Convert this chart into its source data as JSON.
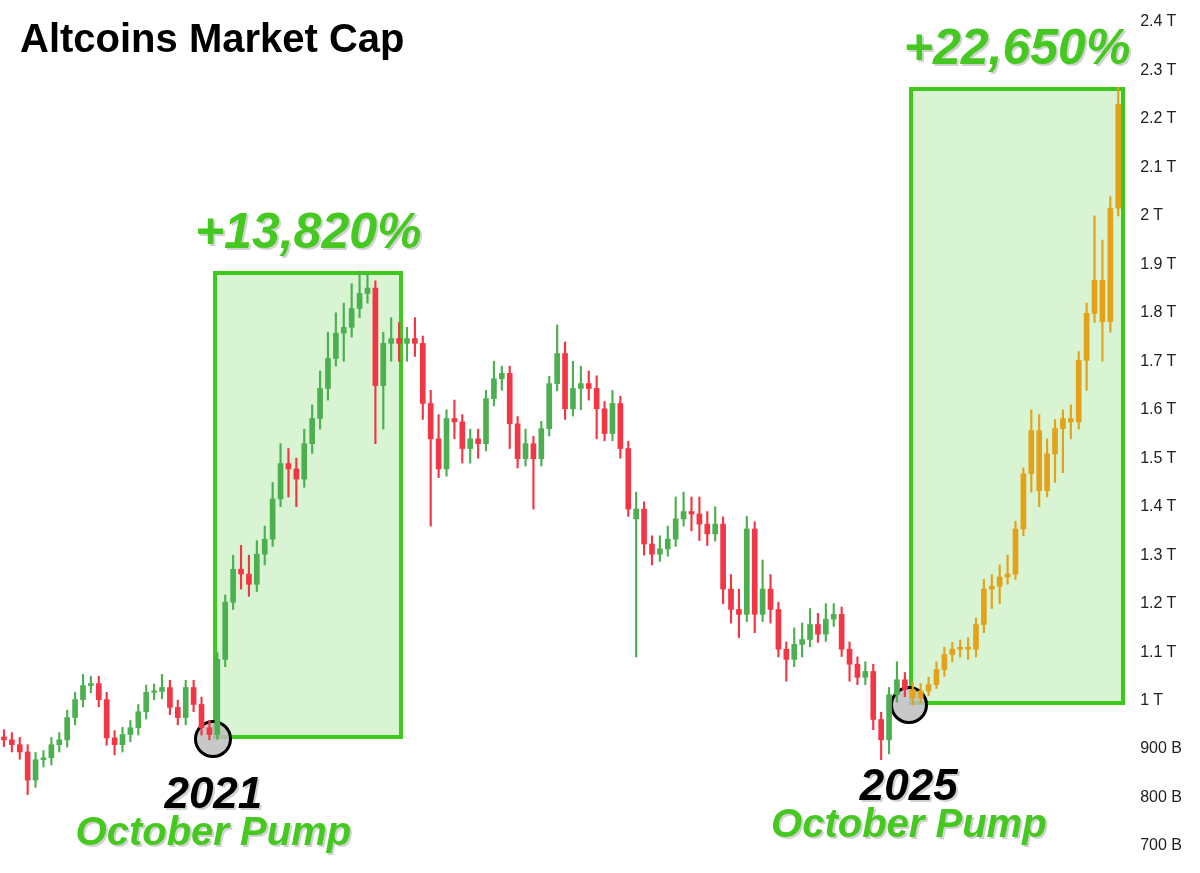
{
  "chart_data": {
    "type": "candlestick",
    "title": "Altcoins Market Cap",
    "categories": [
      null,
      null,
      null,
      null,
      null,
      null,
      null,
      null,
      null,
      null,
      null,
      null,
      null,
      null,
      null,
      null,
      null,
      null,
      null,
      null,
      null,
      null,
      null,
      null,
      null,
      null,
      null,
      null,
      null,
      null,
      null,
      null,
      null,
      null,
      null,
      null,
      null,
      null,
      null,
      null,
      null,
      null,
      null,
      null,
      null,
      null,
      null,
      null,
      null,
      null,
      null,
      null,
      null,
      null,
      null,
      null,
      null,
      null,
      null,
      null,
      null,
      null,
      null,
      null,
      null,
      null,
      null,
      null,
      null,
      null,
      null,
      null,
      null,
      null,
      null,
      null,
      null,
      null,
      null,
      null,
      null,
      null,
      null,
      null,
      null,
      null,
      null,
      null,
      null,
      null,
      null,
      null,
      null,
      null,
      null,
      null,
      null,
      null,
      null,
      null,
      null,
      null,
      null,
      null,
      null,
      null,
      null,
      null,
      null,
      null,
      null,
      null,
      null,
      null,
      null,
      null,
      null,
      null,
      null,
      null,
      null,
      null,
      null,
      null,
      null,
      null,
      null,
      null,
      null,
      null,
      null,
      null,
      null,
      null,
      null,
      null,
      null,
      null,
      null,
      null,
      null,
      null
    ],
    "yticks": [
      {
        "value": 700000000000.0,
        "label": "700 B"
      },
      {
        "value": 800000000000.0,
        "label": "800 B"
      },
      {
        "value": 900000000000.0,
        "label": "900 B"
      },
      {
        "value": 1000000000000.0,
        "label": "1 T"
      },
      {
        "value": 1100000000000.0,
        "label": "1.1 T"
      },
      {
        "value": 1200000000000.0,
        "label": "1.2 T"
      },
      {
        "value": 1300000000000.0,
        "label": "1.3 T"
      },
      {
        "value": 1400000000000.0,
        "label": "1.4 T"
      },
      {
        "value": 1500000000000.0,
        "label": "1.5 T"
      },
      {
        "value": 1600000000000.0,
        "label": "1.6 T"
      },
      {
        "value": 1700000000000.0,
        "label": "1.7 T"
      },
      {
        "value": 1800000000000.0,
        "label": "1.8 T"
      },
      {
        "value": 1900000000000.0,
        "label": "1.9 T"
      },
      {
        "value": 2000000000000.0,
        "label": "2 T"
      },
      {
        "value": 2100000000000.0,
        "label": "2.1 T"
      },
      {
        "value": 2200000000000.0,
        "label": "2.2 T"
      },
      {
        "value": 2300000000000.0,
        "label": "2.3 T"
      },
      {
        "value": 2400000000000.0,
        "label": "2.4 T"
      }
    ],
    "ylim": [
      700000000000.0,
      2400000000000.0
    ],
    "tick_labels": "y",
    "grid": false,
    "legend": false,
    "ohlc": [
      [
        925000000000.0,
        940000000000.0,
        905000000000.0,
        919000000000.0
      ],
      [
        919000000000.0,
        934000000000.0,
        894000000000.0,
        909000000000.0
      ],
      [
        909000000000.0,
        924000000000.0,
        879000000000.0,
        894000000000.0
      ],
      [
        894000000000.0,
        909000000000.0,
        806000000000.0,
        836000000000.0
      ],
      [
        836000000000.0,
        893000000000.0,
        821000000000.0,
        878000000000.0
      ],
      [
        878000000000.0,
        897000000000.0,
        863000000000.0,
        882000000000.0
      ],
      [
        882000000000.0,
        924000000000.0,
        867000000000.0,
        909000000000.0
      ],
      [
        909000000000.0,
        934000000000.0,
        894000000000.0,
        919000000000.0
      ],
      [
        919000000000.0,
        980000000000.0,
        904000000000.0,
        965000000000.0
      ],
      [
        965000000000.0,
        1017000000000.0,
        950000000000.0,
        1002000000000.0
      ],
      [
        1002000000000.0,
        1054000000000.0,
        987000000000.0,
        1031000000000.0
      ],
      [
        1031000000000.0,
        1050000000000.0,
        1016000000000.0,
        1035000000000.0
      ],
      [
        1035000000000.0,
        1050000000000.0,
        987000000000.0,
        1002000000000.0
      ],
      [
        1002000000000.0,
        1017000000000.0,
        908000000000.0,
        923000000000.0
      ],
      [
        923000000000.0,
        938000000000.0,
        888000000000.0,
        909000000000.0
      ],
      [
        909000000000.0,
        945000000000.0,
        894000000000.0,
        930000000000.0
      ],
      [
        930000000000.0,
        959000000000.0,
        915000000000.0,
        944000000000.0
      ],
      [
        944000000000.0,
        992000000000.0,
        929000000000.0,
        977000000000.0
      ],
      [
        977000000000.0,
        1032000000000.0,
        962000000000.0,
        1017000000000.0
      ],
      [
        1017000000000.0,
        1034000000000.0,
        1002000000000.0,
        1019000000000.0
      ],
      [
        1019000000000.0,
        1054000000000.0,
        1004000000000.0,
        1027000000000.0
      ],
      [
        1027000000000.0,
        1042000000000.0,
        971000000000.0,
        986000000000.0
      ],
      [
        986000000000.0,
        1001000000000.0,
        950000000000.0,
        965000000000.0
      ],
      [
        965000000000.0,
        1042000000000.0,
        950000000000.0,
        1027000000000.0
      ],
      [
        1027000000000.0,
        1042000000000.0,
        977000000000.0,
        992000000000.0
      ],
      [
        992000000000.0,
        1007000000000.0,
        929000000000.0,
        944000000000.0
      ],
      [
        944000000000.0,
        959000000000.0,
        919000000000.0,
        930000000000.0
      ],
      [
        930000000000.0,
        1100000000000.0,
        920000000000.0,
        1085000000000.0
      ],
      [
        1085000000000.0,
        1218000000000.0,
        1070000000000.0,
        1203000000000.0
      ],
      [
        1203000000000.0,
        1300000000000.0,
        1188000000000.0,
        1271000000000.0
      ],
      [
        1271000000000.0,
        1320000000000.0,
        1230000000000.0,
        1261000000000.0
      ],
      [
        1261000000000.0,
        1300000000000.0,
        1215000000000.0,
        1240000000000.0
      ],
      [
        1240000000000.0,
        1330000000000.0,
        1225000000000.0,
        1302000000000.0
      ],
      [
        1302000000000.0,
        1360000000000.0,
        1280000000000.0,
        1333000000000.0
      ],
      [
        1333000000000.0,
        1450000000000.0,
        1318000000000.0,
        1416000000000.0
      ],
      [
        1416000000000.0,
        1530000000000.0,
        1400000000000.0,
        1489000000000.0
      ],
      [
        1489000000000.0,
        1520000000000.0,
        1420000000000.0,
        1478000000000.0
      ],
      [
        1478000000000.0,
        1500000000000.0,
        1400000000000.0,
        1457000000000.0
      ],
      [
        1457000000000.0,
        1560000000000.0,
        1440000000000.0,
        1530000000000.0
      ],
      [
        1530000000000.0,
        1610000000000.0,
        1510000000000.0,
        1582000000000.0
      ],
      [
        1582000000000.0,
        1680000000000.0,
        1560000000000.0,
        1644000000000.0
      ],
      [
        1644000000000.0,
        1760000000000.0,
        1620000000000.0,
        1706000000000.0
      ],
      [
        1706000000000.0,
        1800000000000.0,
        1690000000000.0,
        1758000000000.0
      ],
      [
        1758000000000.0,
        1820000000000.0,
        1700000000000.0,
        1770000000000.0
      ],
      [
        1770000000000.0,
        1860000000000.0,
        1750000000000.0,
        1809000000000.0
      ],
      [
        1809000000000.0,
        1886000000000.0,
        1790000000000.0,
        1840000000000.0
      ],
      [
        1840000000000.0,
        1880000000000.0,
        1820000000000.0,
        1851000000000.0
      ],
      [
        1851000000000.0,
        1866000000000.0,
        1530000000000.0,
        1650000000000.0
      ],
      [
        1650000000000.0,
        1760000000000.0,
        1560000000000.0,
        1737000000000.0
      ],
      [
        1737000000000.0,
        1790000000000.0,
        1700000000000.0,
        1747000000000.0
      ],
      [
        1747000000000.0,
        1780000000000.0,
        1700000000000.0,
        1737000000000.0
      ],
      [
        1737000000000.0,
        1770000000000.0,
        1700000000000.0,
        1747000000000.0
      ],
      [
        1747000000000.0,
        1790000000000.0,
        1710000000000.0,
        1737000000000.0
      ],
      [
        1737000000000.0,
        1752000000000.0,
        1580000000000.0,
        1613000000000.0
      ],
      [
        1613000000000.0,
        1640000000000.0,
        1360000000000.0,
        1540000000000.0
      ],
      [
        1540000000000.0,
        1590000000000.0,
        1460000000000.0,
        1478000000000.0
      ],
      [
        1478000000000.0,
        1600000000000.0,
        1463000000000.0,
        1582000000000.0
      ],
      [
        1582000000000.0,
        1620000000000.0,
        1540000000000.0,
        1575000000000.0
      ],
      [
        1575000000000.0,
        1590000000000.0,
        1490000000000.0,
        1520000000000.0
      ],
      [
        1520000000000.0,
        1560000000000.0,
        1490000000000.0,
        1540000000000.0
      ],
      [
        1540000000000.0,
        1560000000000.0,
        1500000000000.0,
        1530000000000.0
      ],
      [
        1530000000000.0,
        1640000000000.0,
        1515000000000.0,
        1623000000000.0
      ],
      [
        1623000000000.0,
        1700000000000.0,
        1608000000000.0,
        1664000000000.0
      ],
      [
        1664000000000.0,
        1690000000000.0,
        1640000000000.0,
        1675000000000.0
      ],
      [
        1675000000000.0,
        1690000000000.0,
        1520000000000.0,
        1571000000000.0
      ],
      [
        1571000000000.0,
        1586000000000.0,
        1480000000000.0,
        1499000000000.0
      ],
      [
        1499000000000.0,
        1560000000000.0,
        1484000000000.0,
        1530000000000.0
      ],
      [
        1530000000000.0,
        1545000000000.0,
        1395000000000.0,
        1499000000000.0
      ],
      [
        1499000000000.0,
        1576000000000.0,
        1484000000000.0,
        1561000000000.0
      ],
      [
        1561000000000.0,
        1669000000000.0,
        1546000000000.0,
        1654000000000.0
      ],
      [
        1654000000000.0,
        1775000000000.0,
        1639000000000.0,
        1716000000000.0
      ],
      [
        1716000000000.0,
        1740000000000.0,
        1580000000000.0,
        1602000000000.0
      ],
      [
        1602000000000.0,
        1700000000000.0,
        1587000000000.0,
        1644000000000.0
      ],
      [
        1644000000000.0,
        1690000000000.0,
        1600000000000.0,
        1654000000000.0
      ],
      [
        1654000000000.0,
        1680000000000.0,
        1620000000000.0,
        1644000000000.0
      ],
      [
        1644000000000.0,
        1670000000000.0,
        1540000000000.0,
        1602000000000.0
      ],
      [
        1602000000000.0,
        1617000000000.0,
        1536000000000.0,
        1551000000000.0
      ],
      [
        1551000000000.0,
        1640000000000.0,
        1536000000000.0,
        1613000000000.0
      ],
      [
        1613000000000.0,
        1628000000000.0,
        1500000000000.0,
        1520000000000.0
      ],
      [
        1520000000000.0,
        1535000000000.0,
        1380000000000.0,
        1395000000000.0
      ],
      [
        1375000000000.0,
        1430000000000.0,
        1090000000000.0,
        1395000000000.0
      ],
      [
        1395000000000.0,
        1410000000000.0,
        1300000000000.0,
        1323000000000.0
      ],
      [
        1323000000000.0,
        1340000000000.0,
        1280000000000.0,
        1302000000000.0
      ],
      [
        1302000000000.0,
        1340000000000.0,
        1287000000000.0,
        1313000000000.0
      ],
      [
        1313000000000.0,
        1360000000000.0,
        1298000000000.0,
        1333000000000.0
      ],
      [
        1333000000000.0,
        1420000000000.0,
        1318000000000.0,
        1375000000000.0
      ],
      [
        1375000000000.0,
        1430000000000.0,
        1360000000000.0,
        1390000000000.0
      ],
      [
        1390000000000.0,
        1420000000000.0,
        1350000000000.0,
        1385000000000.0
      ],
      [
        1385000000000.0,
        1420000000000.0,
        1330000000000.0,
        1364000000000.0
      ],
      [
        1364000000000.0,
        1390000000000.0,
        1320000000000.0,
        1344000000000.0
      ],
      [
        1344000000000.0,
        1400000000000.0,
        1329000000000.0,
        1364000000000.0
      ],
      [
        1364000000000.0,
        1379000000000.0,
        1200000000000.0,
        1230000000000.0
      ],
      [
        1230000000000.0,
        1260000000000.0,
        1160000000000.0,
        1188000000000.0
      ],
      [
        1188000000000.0,
        1230000000000.0,
        1130000000000.0,
        1178000000000.0
      ],
      [
        1178000000000.0,
        1380000000000.0,
        1163000000000.0,
        1354000000000.0
      ],
      [
        1354000000000.0,
        1369000000000.0,
        1140000000000.0,
        1178000000000.0
      ],
      [
        1178000000000.0,
        1290000000000.0,
        1163000000000.0,
        1230000000000.0
      ],
      [
        1230000000000.0,
        1260000000000.0,
        1160000000000.0,
        1188000000000.0
      ],
      [
        1188000000000.0,
        1203000000000.0,
        1090000000000.0,
        1106000000000.0
      ],
      [
        1106000000000.0,
        1121000000000.0,
        1040000000000.0,
        1085000000000.0
      ],
      [
        1085000000000.0,
        1150000000000.0,
        1070000000000.0,
        1116000000000.0
      ],
      [
        1116000000000.0,
        1160000000000.0,
        1090000000000.0,
        1126000000000.0
      ],
      [
        1126000000000.0,
        1190000000000.0,
        1111000000000.0,
        1157000000000.0
      ],
      [
        1157000000000.0,
        1180000000000.0,
        1120000000000.0,
        1137000000000.0
      ],
      [
        1137000000000.0,
        1200000000000.0,
        1122000000000.0,
        1168000000000.0
      ],
      [
        1168000000000.0,
        1200000000000.0,
        1153000000000.0,
        1178000000000.0
      ],
      [
        1178000000000.0,
        1193000000000.0,
        1091000000000.0,
        1106000000000.0
      ],
      [
        1106000000000.0,
        1121000000000.0,
        1040000000000.0,
        1075000000000.0
      ],
      [
        1075000000000.0,
        1090000000000.0,
        1033000000000.0,
        1048000000000.0
      ],
      [
        1048000000000.0,
        1080000000000.0,
        1033000000000.0,
        1060000000000.0
      ],
      [
        1060000000000.0,
        1075000000000.0,
        940000000000.0,
        961000000000.0
      ],
      [
        961000000000.0,
        976000000000.0,
        878000000000.0,
        919000000000.0
      ],
      [
        919000000000.0,
        1027000000000.0,
        890000000000.0,
        1012000000000.0
      ],
      [
        1012000000000.0,
        1080000000000.0,
        997000000000.0,
        1043000000000.0
      ],
      [
        1043000000000.0,
        1058000000000.0,
        1008000000000.0,
        1023000000000.0
      ],
      [
        1023000000000.0,
        1038000000000.0,
        991000000000.0,
        1006000000000.0
      ],
      [
        1006000000000.0,
        1035000000000.0,
        995000000000.0,
        1020000000000.0
      ],
      [
        1020000000000.0,
        1048000000000.0,
        1010000000000.0,
        1033000000000.0
      ],
      [
        1033000000000.0,
        1080000000000.0,
        1025000000000.0,
        1064000000000.0
      ],
      [
        1064000000000.0,
        1110000000000.0,
        1050000000000.0,
        1095000000000.0
      ],
      [
        1095000000000.0,
        1120000000000.0,
        1080000000000.0,
        1106000000000.0
      ],
      [
        1106000000000.0,
        1125000000000.0,
        1090000000000.0,
        1110000000000.0
      ],
      [
        1110000000000.0,
        1130000000000.0,
        1085000000000.0,
        1106000000000.0
      ],
      [
        1106000000000.0,
        1170000000000.0,
        1090000000000.0,
        1157000000000.0
      ],
      [
        1157000000000.0,
        1250000000000.0,
        1140000000000.0,
        1230000000000.0
      ],
      [
        1230000000000.0,
        1260000000000.0,
        1190000000000.0,
        1236000000000.0
      ],
      [
        1236000000000.0,
        1280000000000.0,
        1200000000000.0,
        1255000000000.0
      ],
      [
        1255000000000.0,
        1300000000000.0,
        1240000000000.0,
        1261000000000.0
      ],
      [
        1261000000000.0,
        1370000000000.0,
        1250000000000.0,
        1354000000000.0
      ],
      [
        1354000000000.0,
        1480000000000.0,
        1340000000000.0,
        1468000000000.0
      ],
      [
        1468000000000.0,
        1600000000000.0,
        1430000000000.0,
        1557000000000.0
      ],
      [
        1557000000000.0,
        1590000000000.0,
        1400000000000.0,
        1433000000000.0
      ],
      [
        1433000000000.0,
        1540000000000.0,
        1420000000000.0,
        1509000000000.0
      ],
      [
        1509000000000.0,
        1580000000000.0,
        1450000000000.0,
        1561000000000.0
      ],
      [
        1561000000000.0,
        1600000000000.0,
        1470000000000.0,
        1582000000000.0
      ],
      [
        1582000000000.0,
        1610000000000.0,
        1540000000000.0,
        1575000000000.0
      ],
      [
        1575000000000.0,
        1720000000000.0,
        1560000000000.0,
        1702000000000.0
      ],
      [
        1702000000000.0,
        1820000000000.0,
        1640000000000.0,
        1799000000000.0
      ],
      [
        1799000000000.0,
        2000000000000.0,
        1780000000000.0,
        1867000000000.0
      ],
      [
        1867000000000.0,
        1950000000000.0,
        1700000000000.0,
        1782000000000.0
      ],
      [
        1782000000000.0,
        2040000000000.0,
        1760000000000.0,
        2016000000000.0
      ],
      [
        2016000000000.0,
        2265000000000.0,
        2000000000000.0,
        2230000000000.0
      ]
    ],
    "colors": [
      "#f23645",
      "#f23645",
      "#f23645",
      "#f23645",
      "#4caf50",
      "#4caf50",
      "#4caf50",
      "#4caf50",
      "#4caf50",
      "#4caf50",
      "#4caf50",
      "#4caf50",
      "#f23645",
      "#f23645",
      "#f23645",
      "#4caf50",
      "#4caf50",
      "#4caf50",
      "#4caf50",
      "#4caf50",
      "#4caf50",
      "#f23645",
      "#f23645",
      "#4caf50",
      "#f23645",
      "#f23645",
      "#f23645",
      "#4caf50",
      "#4caf50",
      "#4caf50",
      "#f23645",
      "#f23645",
      "#4caf50",
      "#4caf50",
      "#4caf50",
      "#4caf50",
      "#f23645",
      "#f23645",
      "#4caf50",
      "#4caf50",
      "#4caf50",
      "#4caf50",
      "#4caf50",
      "#4caf50",
      "#4caf50",
      "#4caf50",
      "#4caf50",
      "#f23645",
      "#4caf50",
      "#4caf50",
      "#f23645",
      "#4caf50",
      "#f23645",
      "#f23645",
      "#f23645",
      "#f23645",
      "#4caf50",
      "#f23645",
      "#f23645",
      "#4caf50",
      "#f23645",
      "#4caf50",
      "#4caf50",
      "#4caf50",
      "#f23645",
      "#f23645",
      "#4caf50",
      "#f23645",
      "#4caf50",
      "#4caf50",
      "#4caf50",
      "#f23645",
      "#4caf50",
      "#4caf50",
      "#f23645",
      "#f23645",
      "#f23645",
      "#4caf50",
      "#f23645",
      "#f23645",
      "#4caf50",
      "#f23645",
      "#f23645",
      "#4caf50",
      "#4caf50",
      "#4caf50",
      "#4caf50",
      "#f23645",
      "#f23645",
      "#f23645",
      "#4caf50",
      "#f23645",
      "#f23645",
      "#f23645",
      "#4caf50",
      "#f23645",
      "#4caf50",
      "#f23645",
      "#f23645",
      "#f23645",
      "#4caf50",
      "#4caf50",
      "#4caf50",
      "#f23645",
      "#4caf50",
      "#4caf50",
      "#f23645",
      "#f23645",
      "#f23645",
      "#4caf50",
      "#f23645",
      "#f23645",
      "#4caf50",
      "#4caf50",
      "#f23645",
      "#e3a21a",
      "#e3a21a",
      "#e3a21a",
      "#e3a21a",
      "#e3a21a",
      "#e3a21a",
      "#e3a21a",
      "#e3a21a",
      "#e3a21a",
      "#e3a21a",
      "#e3a21a",
      "#e3a21a",
      "#e3a21a",
      "#e3a21a",
      "#e3a21a",
      "#e3a21a",
      "#e3a21a",
      "#e3a21a",
      "#e3a21a",
      "#e3a21a",
      "#e3a21a",
      "#e3a21a",
      "#e3a21a",
      "#e3a21a",
      "#e3a21a",
      "#e3a21a",
      "#e3a21a"
    ],
    "annotations": [
      "+13,820%",
      "2021",
      "October Pump",
      "+22,650%",
      "2025",
      "October Pump"
    ]
  }
}
